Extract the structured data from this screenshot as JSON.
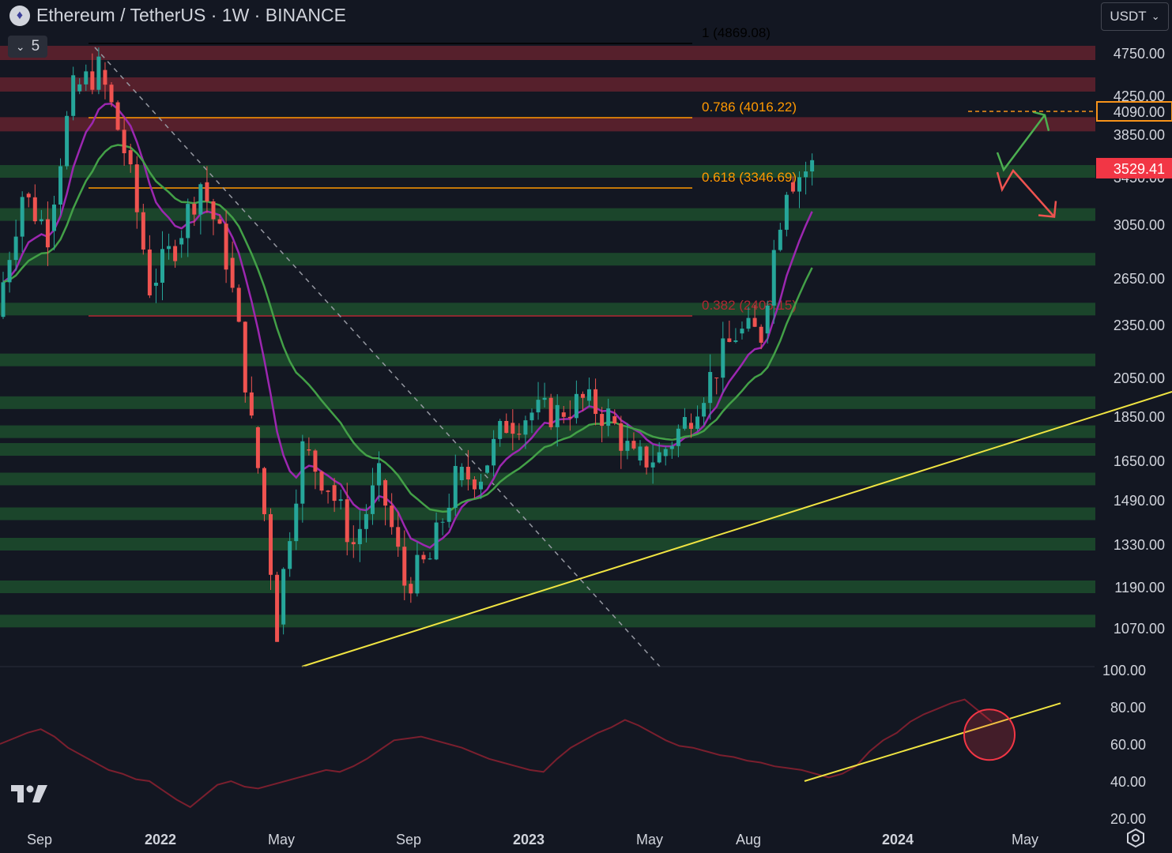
{
  "header": {
    "symbol_icon": "ethereum-logo-icon",
    "title": "Ethereum / TetherUS · 1W · BINANCE",
    "indicator_count": "5",
    "currency_button": "USDT"
  },
  "colors": {
    "background": "#131722",
    "up": "#26a69a",
    "down": "#ef5350",
    "ema_fast": "#9c27b0",
    "ema_slow": "#43a047",
    "fib": "#ff9800",
    "trendline": "#f0e442",
    "support_zone": "#1f5a2f",
    "resistance_zone": "#6e2430",
    "last_price_bg": "#f23645",
    "target_bg": "#f7931a",
    "rsi_line": "#7a1f2e"
  },
  "chart_data": {
    "type": "candlestick",
    "title": "Ethereum / TetherUS · 1W · BINANCE",
    "currency": "USDT",
    "y_axis_ticks": [
      "4750.00",
      "4250.00",
      "3850.00",
      "3450.00",
      "3050.00",
      "2650.00",
      "2350.00",
      "2050.00",
      "1850.00",
      "1650.00",
      "1490.00",
      "1330.00",
      "1190.00",
      "1070.00"
    ],
    "x_axis_ticks": [
      "Sep",
      "2022",
      "May",
      "Sep",
      "2023",
      "May",
      "Aug",
      "2024",
      "May"
    ],
    "x_axis_bold": [
      "2022",
      "2023",
      "2024"
    ],
    "price_labels": [
      {
        "label": "4090.00",
        "value": 4090,
        "style": "target"
      },
      {
        "label": "3529.41",
        "value": 3529.41,
        "style": "last"
      }
    ],
    "fibonacci": [
      {
        "label": "1 (4869.08)",
        "level": 1,
        "value": 4869.08
      },
      {
        "label": "0.786 (4016.22)",
        "level": 0.786,
        "value": 4016.22
      },
      {
        "label": "0.618 (3346.69)",
        "level": 0.618,
        "value": 3346.69
      },
      {
        "label": "0.382 (2406.15)",
        "level": 0.382,
        "value": 2406.15
      }
    ],
    "resistance_zones": [
      4750,
      4380,
      3950
    ],
    "support_zones": [
      3500,
      3130,
      2790,
      2450,
      2150,
      1920,
      1780,
      1700,
      1575,
      1440,
      1330,
      1190,
      1090
    ],
    "trendlines": [
      {
        "name": "rising support",
        "from": [
          "Jun 2022",
          1000
        ],
        "to": [
          "Jun 2024",
          1950
        ]
      }
    ],
    "projection_arrows": [
      {
        "direction": "up",
        "target": 3900
      },
      {
        "direction": "down",
        "target": 3150
      }
    ],
    "candles_approx": [
      [
        "Aug 2021",
        2400,
        3300
      ],
      [
        "Sep 2021",
        3300,
        3000
      ],
      [
        "Oct 2021",
        3000,
        4300
      ],
      [
        "Nov 2021",
        4300,
        4550
      ],
      [
        "Dec 2021",
        4550,
        3700
      ],
      [
        "Jan 2022",
        3700,
        2600
      ],
      [
        "Feb 2022",
        2600,
        2900
      ],
      [
        "Mar 2022",
        2900,
        3400
      ],
      [
        "Apr 2022",
        3400,
        2800
      ],
      [
        "May 2022",
        2800,
        1800
      ],
      [
        "Jun 2022",
        1800,
        1080
      ],
      [
        "Jul 2022",
        1080,
        1700
      ],
      [
        "Aug 2022",
        1700,
        1550
      ],
      [
        "Sep 2022",
        1550,
        1330
      ],
      [
        "Oct 2022",
        1330,
        1570
      ],
      [
        "Nov 2022",
        1570,
        1200
      ],
      [
        "Dec 2022",
        1200,
        1280
      ],
      [
        "Jan 2023",
        1280,
        1570
      ],
      [
        "Feb 2023",
        1570,
        1600
      ],
      [
        "Mar 2023",
        1600,
        1820
      ],
      [
        "Apr 2023",
        1820,
        1870
      ],
      [
        "May 2023",
        1870,
        1870
      ],
      [
        "Jun 2023",
        1870,
        1930
      ],
      [
        "Jul 2023",
        1930,
        1850
      ],
      [
        "Aug 2023",
        1850,
        1650
      ],
      [
        "Sep 2023",
        1650,
        1670
      ],
      [
        "Oct 2023",
        1670,
        1820
      ],
      [
        "Nov 2023",
        1820,
        2050
      ],
      [
        "Dec 2023",
        2050,
        2300
      ],
      [
        "Jan 2024",
        2300,
        2300
      ],
      [
        "Feb 2024",
        2300,
        3400
      ],
      [
        "Mar 2024",
        3400,
        3550
      ]
    ],
    "rsi": {
      "y_axis_ticks": [
        "100.00",
        "80.00",
        "60.00",
        "40.00",
        "20.00"
      ],
      "ylim": [
        20,
        100
      ],
      "values": [
        60,
        63,
        66,
        68,
        64,
        58,
        54,
        50,
        46,
        44,
        41,
        40,
        35,
        30,
        26,
        32,
        38,
        40,
        37,
        36,
        38,
        40,
        42,
        44,
        46,
        45,
        48,
        52,
        57,
        62,
        63,
        64,
        62,
        60,
        58,
        55,
        52,
        50,
        48,
        46,
        45,
        52,
        58,
        62,
        66,
        69,
        73,
        70,
        66,
        62,
        59,
        58,
        56,
        54,
        53,
        51,
        50,
        48,
        47,
        46,
        44,
        42,
        44,
        48,
        56,
        62,
        66,
        72,
        76,
        79,
        82,
        84,
        78,
        72
      ],
      "circle_highlight": true,
      "trendline": [
        [
          0.7,
          40
        ],
        [
          0.91,
          76
        ]
      ]
    }
  }
}
